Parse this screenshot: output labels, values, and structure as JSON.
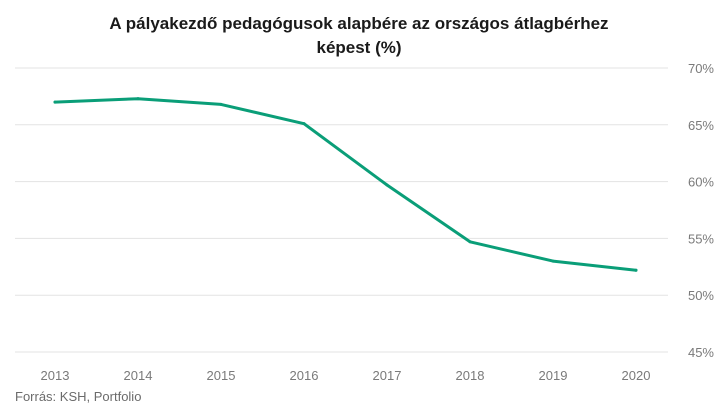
{
  "chart_data": {
    "type": "line",
    "title_lines": [
      "A pályakezdő pedagógusok alapbére az országos átlagbérhez",
      "képest (%)"
    ],
    "categories": [
      "2013",
      "2014",
      "2015",
      "2016",
      "2017",
      "2018",
      "2019",
      "2020"
    ],
    "series": [
      {
        "values": [
          67.0,
          67.3,
          66.8,
          65.1,
          59.7,
          54.7,
          53.0,
          52.2
        ]
      }
    ],
    "ylim": [
      45,
      70
    ],
    "yticks": [
      45,
      50,
      55,
      60,
      65,
      70
    ],
    "ytick_suffix": "%",
    "y_axis_position": "right",
    "grid": true,
    "line_color": "#0a9e78",
    "grid_color": "#e3e3e3",
    "source": "Forrás: KSH, Portfolio"
  }
}
